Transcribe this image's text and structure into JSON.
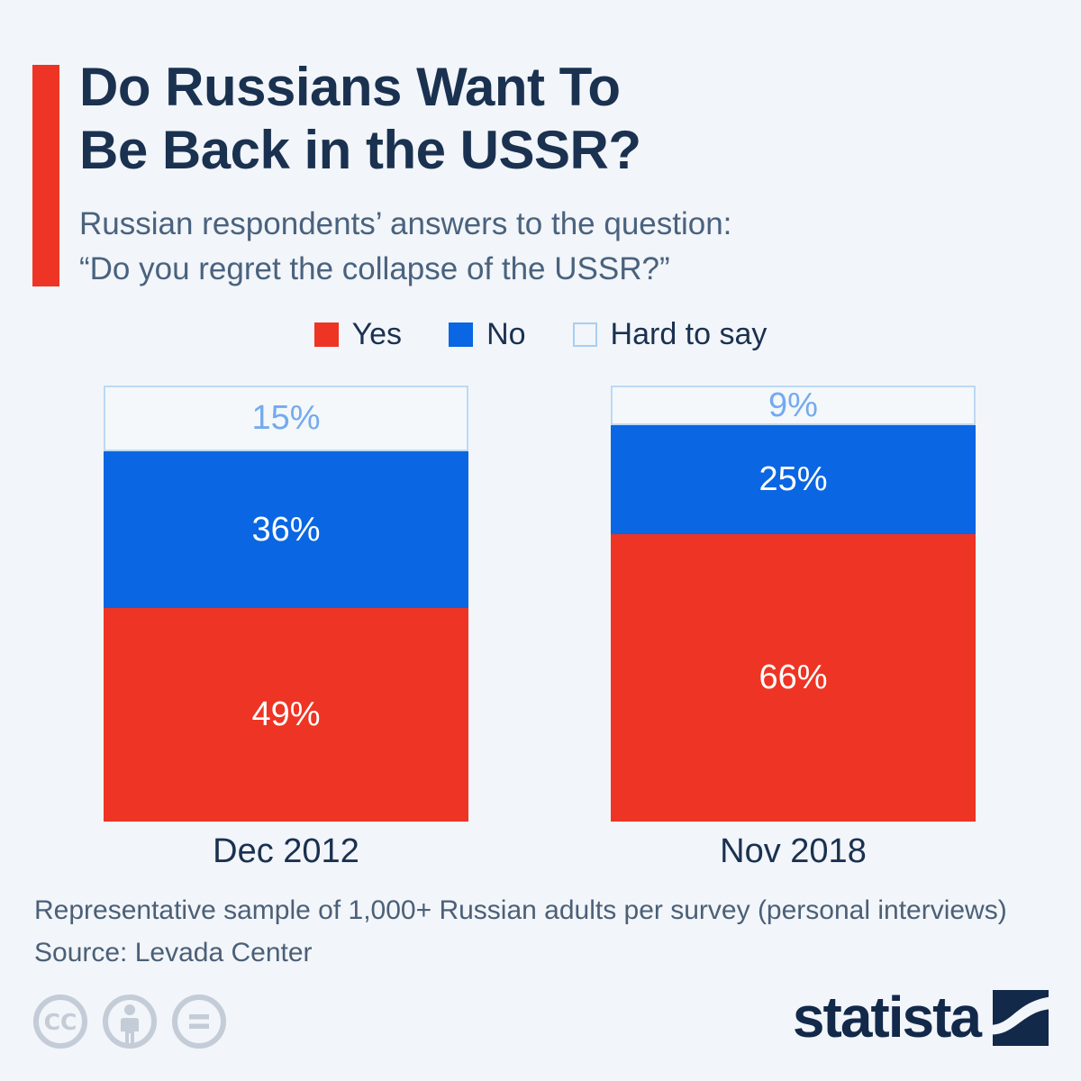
{
  "page": {
    "background": "#f2f5f9"
  },
  "header": {
    "accent_color": "#ee3424",
    "title_lines": [
      "Do Russians Want To",
      "Be Back in the USSR?"
    ],
    "subtitle_lines": [
      "Russian respondents’ answers to the question:",
      "“Do you regret the collapse of the USSR?”"
    ]
  },
  "legend": {
    "items": [
      {
        "label": "Yes",
        "swatch_color": "#ee3424",
        "swatch_border": "#ee3424",
        "icon": "red-square-swatch-icon"
      },
      {
        "label": "No",
        "swatch_color": "#0a66e2",
        "swatch_border": "#0a66e2",
        "icon": "blue-square-swatch-icon"
      },
      {
        "label": "Hard to say",
        "swatch_color": "#f2f5f9",
        "swatch_border": "#a9cef2",
        "icon": "outlined-square-swatch-icon"
      }
    ]
  },
  "chart_data": {
    "type": "bar",
    "stacked": true,
    "orientation": "vertical",
    "title": "Do Russians Want To Be Back in the USSR?",
    "categories": [
      "Dec 2012",
      "Nov 2018"
    ],
    "series": [
      {
        "name": "Yes",
        "values": [
          49,
          66
        ],
        "color": "#ee3424",
        "label_color": "#ffffff"
      },
      {
        "name": "No",
        "values": [
          36,
          25
        ],
        "color": "#0a66e2",
        "label_color": "#ffffff"
      },
      {
        "name": "Hard to say",
        "values": [
          15,
          9
        ],
        "color": "#f4f8fb",
        "border_color": "#bdd9f4",
        "label_color": "#74aaef"
      }
    ],
    "value_suffix": "%",
    "total": 100,
    "ylim": [
      0,
      100
    ],
    "grid": false,
    "legend_position": "top",
    "data_labels": true
  },
  "footer": {
    "note": "Representative sample of 1,000+ Russian adults per survey (personal interviews)",
    "source": "Source: Levada Center"
  },
  "license": {
    "icons": [
      "creative-commons-icon",
      "attribution-person-icon",
      "no-derivatives-equals-icon"
    ],
    "icon_color": "#c3ccd7"
  },
  "branding": {
    "logo_text": "statista",
    "logo_color": "#12294a"
  }
}
